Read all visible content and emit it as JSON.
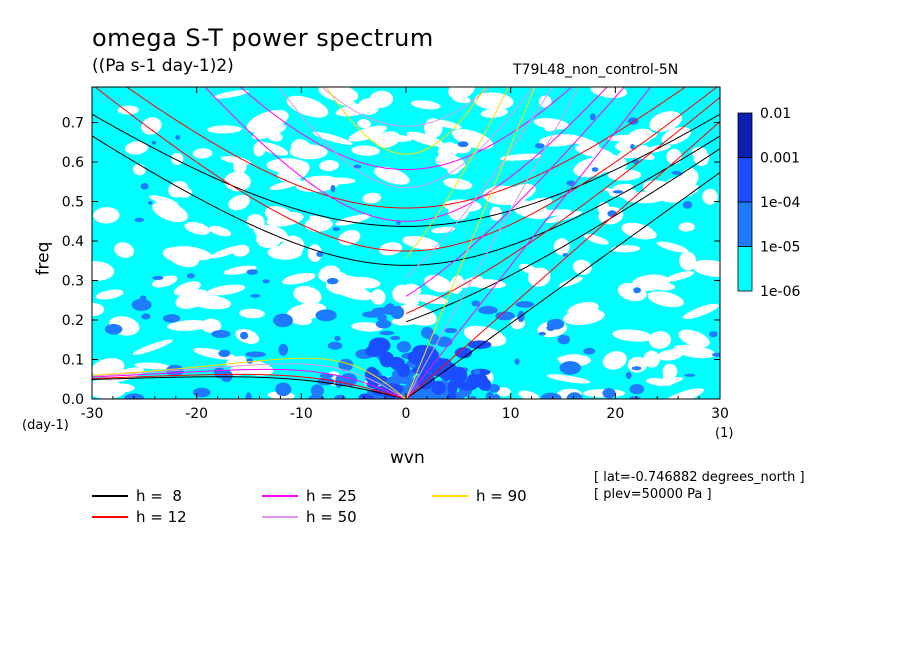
{
  "title": "omega S-T power spectrum",
  "units": "((Pa s-1 day-1)2)",
  "experiment": "T79L48_non_control-5N",
  "colors": {
    "background": "#ffffff",
    "level_1": "#00ffff",
    "level_2": "#1e7bff",
    "level_3": "#1a4dff",
    "level_4": "#0b1fb0",
    "level_5": "#3a1aa8"
  },
  "chart_data": {
    "type": "heatmap",
    "plot_kind": "filled contour power spectrum with dispersion curves",
    "xlabel": "wvn",
    "ylabel": "freq",
    "x_unit": "(1)",
    "y_unit": "(day-1)",
    "xlim": [
      -30,
      30
    ],
    "ylim": [
      0.0,
      0.79
    ],
    "x_ticks": [
      -30,
      -20,
      -10,
      0,
      10,
      20,
      30
    ],
    "x_tick_labels": [
      "-30",
      "-20",
      "-10",
      "0",
      "10",
      "20",
      "30"
    ],
    "y_ticks": [
      0.0,
      0.1,
      0.2,
      0.3,
      0.4,
      0.5,
      0.6,
      0.7
    ],
    "y_tick_labels": [
      "0.0",
      "0.1",
      "0.2",
      "0.3",
      "0.4",
      "0.5",
      "0.6",
      "0.7"
    ],
    "colorbar": {
      "levels": [
        1e-06,
        1e-05,
        0.0001,
        0.001,
        0.01
      ],
      "labels": [
        "1e-06",
        "1e-05",
        "1e-04",
        "0.001",
        "0.01"
      ],
      "colors": [
        "#00ffff",
        "#1e7bff",
        "#1a4dff",
        "#0b1fb0",
        "#3a1aa8"
      ],
      "scale": "log"
    },
    "dispersion_curves": [
      {
        "name": "h =  8",
        "equivalent_depth": 8,
        "color": "#000000"
      },
      {
        "name": "h = 12",
        "equivalent_depth": 12,
        "color": "#ff0000"
      },
      {
        "name": "h = 25",
        "equivalent_depth": 25,
        "color": "#ff00ff"
      },
      {
        "name": "h = 50",
        "equivalent_depth": 50,
        "color": "#dd99e8"
      },
      {
        "name": "h = 90",
        "equivalent_depth": 90,
        "color": "#ffdd00"
      }
    ],
    "annotations": [
      "[ lat=-0.746882 degrees_north ]",
      "[ plev=50000 Pa ]"
    ]
  }
}
